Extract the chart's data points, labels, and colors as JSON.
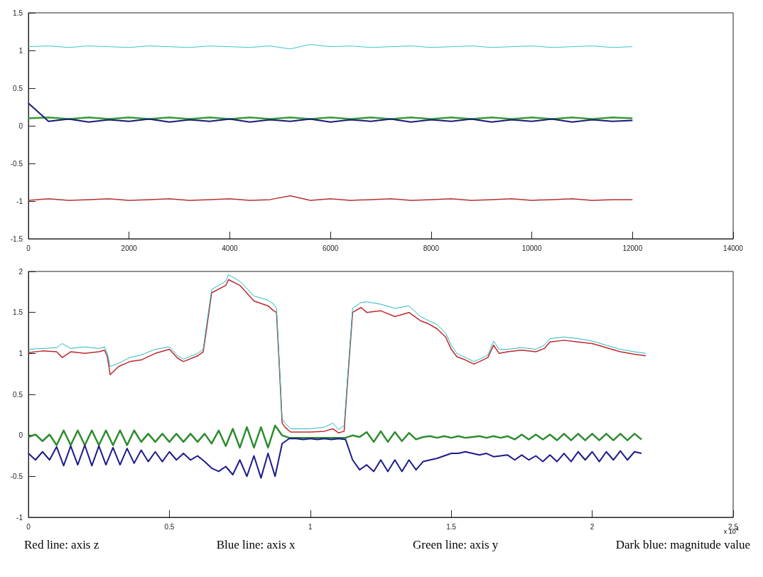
{
  "chart_data": [
    {
      "type": "line",
      "x": [
        0,
        400,
        800,
        1200,
        1600,
        2000,
        2400,
        2800,
        3200,
        3600,
        4000,
        4400,
        4800,
        5200,
        5600,
        6000,
        6400,
        6800,
        7200,
        7600,
        8000,
        8400,
        8800,
        9200,
        9600,
        10000,
        10400,
        10800,
        11200,
        11600,
        12000
      ],
      "series": [
        {
          "color": "#3a9a3a",
          "values": [
            0.1,
            0.11,
            0.09,
            0.11,
            0.09,
            0.11,
            0.09,
            0.11,
            0.09,
            0.11,
            0.09,
            0.11,
            0.09,
            0.11,
            0.09,
            0.11,
            0.09,
            0.11,
            0.09,
            0.11,
            0.09,
            0.11,
            0.09,
            0.11,
            0.09,
            0.11,
            0.09,
            0.11,
            0.09,
            0.11,
            0.1
          ]
        },
        {
          "color": "#1a1a7a",
          "values": [
            0.3,
            0.06,
            0.09,
            0.05,
            0.08,
            0.06,
            0.09,
            0.05,
            0.08,
            0.06,
            0.09,
            0.05,
            0.08,
            0.06,
            0.09,
            0.05,
            0.08,
            0.06,
            0.09,
            0.05,
            0.08,
            0.06,
            0.09,
            0.05,
            0.08,
            0.06,
            0.09,
            0.05,
            0.08,
            0.06,
            0.07
          ]
        },
        {
          "color": "#b83030",
          "values": [
            -0.99,
            -0.97,
            -0.99,
            -0.98,
            -0.97,
            -0.99,
            -0.98,
            -0.97,
            -0.99,
            -0.98,
            -0.97,
            -0.99,
            -0.98,
            -0.93,
            -0.99,
            -0.97,
            -0.99,
            -0.98,
            -0.97,
            -0.99,
            -0.98,
            -0.97,
            -0.99,
            -0.98,
            -0.97,
            -0.99,
            -0.98,
            -0.97,
            -0.99,
            -0.98,
            -0.98
          ]
        },
        {
          "color": "#3cc6c6",
          "values": [
            1.05,
            1.06,
            1.04,
            1.06,
            1.05,
            1.04,
            1.06,
            1.05,
            1.04,
            1.06,
            1.05,
            1.04,
            1.06,
            1.02,
            1.08,
            1.05,
            1.06,
            1.04,
            1.05,
            1.06,
            1.04,
            1.05,
            1.06,
            1.04,
            1.05,
            1.06,
            1.04,
            1.05,
            1.06,
            1.04,
            1.05
          ]
        }
      ],
      "xlim": [
        0,
        14000
      ],
      "xticks": [
        0,
        2000,
        4000,
        6000,
        8000,
        10000,
        12000,
        14000
      ],
      "ylim": [
        -1.5,
        1.5
      ],
      "yticks": [
        -1.5,
        -1,
        -0.5,
        0,
        0.5,
        1,
        1.5
      ],
      "grid": false,
      "marker": "none",
      "line_style": "solid"
    },
    {
      "type": "line",
      "x": [
        0,
        0.025,
        0.05,
        0.075,
        0.1,
        0.125,
        0.15,
        0.175,
        0.2,
        0.225,
        0.25,
        0.275,
        0.3,
        0.325,
        0.35,
        0.375,
        0.4,
        0.425,
        0.45,
        0.475,
        0.5,
        0.525,
        0.55,
        0.575,
        0.6,
        0.625,
        0.65,
        0.675,
        0.7,
        0.725,
        0.75,
        0.775,
        0.8,
        0.825,
        0.85,
        0.875,
        0.9,
        0.925,
        0.95,
        0.975,
        1,
        1.025,
        1.05,
        1.075,
        1.1,
        1.125,
        1.15,
        1.175,
        1.2,
        1.225,
        1.25,
        1.275,
        1.3,
        1.325,
        1.35,
        1.375,
        1.4,
        1.425,
        1.45,
        1.475,
        1.5,
        1.525,
        1.55,
        1.575,
        1.6,
        1.625,
        1.65,
        1.675,
        1.7,
        1.725,
        1.75,
        1.775,
        1.8,
        1.825,
        1.85,
        1.875,
        1.9,
        1.925,
        1.95,
        1.975,
        2,
        2.025,
        2.05,
        2.075,
        2.1,
        2.125,
        2.15,
        2.175
      ],
      "series": [
        {
          "color": "#2e8b2e",
          "values": [
            -0.02,
            0.01,
            -0.07,
            0.01,
            -0.12,
            0.06,
            -0.12,
            0.06,
            -0.12,
            0.06,
            -0.12,
            0.06,
            -0.12,
            0.06,
            -0.12,
            0.06,
            -0.08,
            0.02,
            -0.08,
            0.02,
            -0.08,
            0.02,
            -0.08,
            0.02,
            -0.08,
            0.02,
            -0.1,
            0.06,
            -0.13,
            0.08,
            -0.15,
            0.1,
            -0.15,
            0.1,
            -0.15,
            0.12,
            0.0,
            -0.03,
            -0.03,
            -0.03,
            -0.03,
            -0.03,
            -0.03,
            -0.03,
            -0.03,
            -0.03,
            0.0,
            -0.02,
            0.04,
            -0.08,
            0.05,
            -0.08,
            0.04,
            -0.07,
            0.03,
            -0.05,
            -0.02,
            -0.01,
            -0.03,
            -0.01,
            -0.03,
            -0.01,
            -0.03,
            -0.02,
            -0.01,
            -0.03,
            -0.01,
            -0.03,
            -0.01,
            -0.05,
            0.01,
            -0.05,
            0.01,
            -0.05,
            0.01,
            -0.06,
            0.02,
            -0.06,
            0.02,
            -0.06,
            0.02,
            -0.06,
            0.02,
            -0.06,
            0.02,
            -0.06,
            0.02,
            -0.05
          ]
        },
        {
          "color": "#1c1c8c",
          "values": [
            -0.22,
            -0.3,
            -0.2,
            -0.3,
            -0.14,
            -0.37,
            -0.13,
            -0.36,
            -0.12,
            -0.37,
            -0.13,
            -0.36,
            -0.15,
            -0.36,
            -0.16,
            -0.34,
            -0.18,
            -0.32,
            -0.2,
            -0.32,
            -0.2,
            -0.3,
            -0.22,
            -0.3,
            -0.25,
            -0.32,
            -0.4,
            -0.44,
            -0.38,
            -0.48,
            -0.3,
            -0.5,
            -0.25,
            -0.52,
            -0.22,
            -0.5,
            -0.1,
            -0.04,
            -0.04,
            -0.05,
            -0.04,
            -0.05,
            -0.04,
            -0.05,
            -0.04,
            -0.05,
            -0.3,
            -0.42,
            -0.36,
            -0.44,
            -0.3,
            -0.44,
            -0.3,
            -0.44,
            -0.3,
            -0.42,
            -0.32,
            -0.3,
            -0.28,
            -0.25,
            -0.22,
            -0.22,
            -0.2,
            -0.22,
            -0.24,
            -0.22,
            -0.26,
            -0.25,
            -0.24,
            -0.3,
            -0.24,
            -0.3,
            -0.25,
            -0.32,
            -0.24,
            -0.32,
            -0.22,
            -0.32,
            -0.2,
            -0.3,
            -0.2,
            -0.32,
            -0.2,
            -0.3,
            -0.19,
            -0.3,
            -0.2,
            -0.22
          ]
        },
        {
          "color": "#c0282a",
          "x": [
            0,
            0.05,
            0.1,
            0.12,
            0.15,
            0.2,
            0.25,
            0.27,
            0.28,
            0.29,
            0.32,
            0.36,
            0.4,
            0.45,
            0.5,
            0.53,
            0.55,
            0.6,
            0.62,
            0.63,
            0.65,
            0.7,
            0.71,
            0.75,
            0.8,
            0.85,
            0.87,
            0.88,
            0.89,
            0.9,
            0.91,
            0.93,
            1,
            1.05,
            1.08,
            1.1,
            1.12,
            1.13,
            1.15,
            1.18,
            1.2,
            1.25,
            1.3,
            1.35,
            1.39,
            1.42,
            1.45,
            1.48,
            1.5,
            1.52,
            1.55,
            1.58,
            1.6,
            1.63,
            1.65,
            1.67,
            1.7,
            1.75,
            1.8,
            1.83,
            1.85,
            1.9,
            1.95,
            2,
            2.05,
            2.1,
            2.15,
            2.19
          ],
          "values": [
            1.01,
            1.03,
            1.02,
            0.95,
            1.02,
            1.0,
            1.02,
            1.04,
            0.96,
            0.74,
            0.84,
            0.9,
            0.92,
            1.0,
            1.05,
            0.94,
            0.9,
            0.97,
            1.02,
            1.25,
            1.74,
            1.83,
            1.9,
            1.83,
            1.64,
            1.58,
            1.52,
            1.5,
            0.85,
            0.15,
            0.1,
            0.04,
            0.04,
            0.05,
            0.08,
            0.03,
            0.05,
            0.55,
            1.5,
            1.56,
            1.5,
            1.52,
            1.45,
            1.5,
            1.4,
            1.36,
            1.3,
            1.2,
            1.05,
            0.96,
            0.92,
            0.87,
            0.9,
            0.95,
            1.1,
            1.0,
            1.02,
            1.04,
            1.02,
            1.06,
            1.14,
            1.16,
            1.14,
            1.12,
            1.07,
            1.02,
            0.99,
            0.97
          ]
        },
        {
          "color": "#22b8c0",
          "x": [
            0,
            0.05,
            0.1,
            0.12,
            0.15,
            0.2,
            0.25,
            0.27,
            0.28,
            0.29,
            0.32,
            0.36,
            0.4,
            0.45,
            0.5,
            0.53,
            0.55,
            0.6,
            0.62,
            0.63,
            0.65,
            0.7,
            0.71,
            0.75,
            0.8,
            0.85,
            0.87,
            0.88,
            0.89,
            0.9,
            0.91,
            0.93,
            1,
            1.05,
            1.08,
            1.1,
            1.12,
            1.13,
            1.15,
            1.18,
            1.2,
            1.25,
            1.3,
            1.35,
            1.39,
            1.42,
            1.45,
            1.48,
            1.5,
            1.52,
            1.55,
            1.58,
            1.6,
            1.63,
            1.65,
            1.67,
            1.7,
            1.75,
            1.8,
            1.83,
            1.85,
            1.9,
            1.95,
            2,
            2.05,
            2.1,
            2.15,
            2.19
          ],
          "values": [
            1.05,
            1.06,
            1.07,
            1.12,
            1.06,
            1.08,
            1.06,
            1.08,
            1.0,
            0.84,
            0.88,
            0.95,
            0.98,
            1.05,
            1.08,
            0.97,
            0.93,
            1.0,
            1.05,
            1.3,
            1.78,
            1.88,
            1.96,
            1.88,
            1.7,
            1.65,
            1.6,
            1.55,
            0.9,
            0.2,
            0.15,
            0.08,
            0.08,
            0.1,
            0.15,
            0.07,
            0.12,
            0.6,
            1.55,
            1.62,
            1.63,
            1.6,
            1.55,
            1.58,
            1.45,
            1.4,
            1.35,
            1.25,
            1.1,
            1.0,
            0.95,
            0.9,
            0.93,
            0.98,
            1.15,
            1.05,
            1.05,
            1.07,
            1.05,
            1.1,
            1.18,
            1.2,
            1.18,
            1.15,
            1.1,
            1.05,
            1.02,
            1.0
          ]
        }
      ],
      "xlim": [
        0,
        2.5
      ],
      "xticks": [
        0,
        0.5,
        1,
        1.5,
        2,
        2.5
      ],
      "ylim": [
        -1,
        2
      ],
      "yticks": [
        -1,
        -0.5,
        0,
        0.5,
        1,
        1.5,
        2
      ],
      "grid": false,
      "marker": "none",
      "line_style": "solid",
      "annotations": [
        "x 10$^{4}$",
        "Red line: axis z",
        "Blue line: axis x",
        "Green line: axis y",
        "Dark blue: magnitude value"
      ]
    }
  ]
}
